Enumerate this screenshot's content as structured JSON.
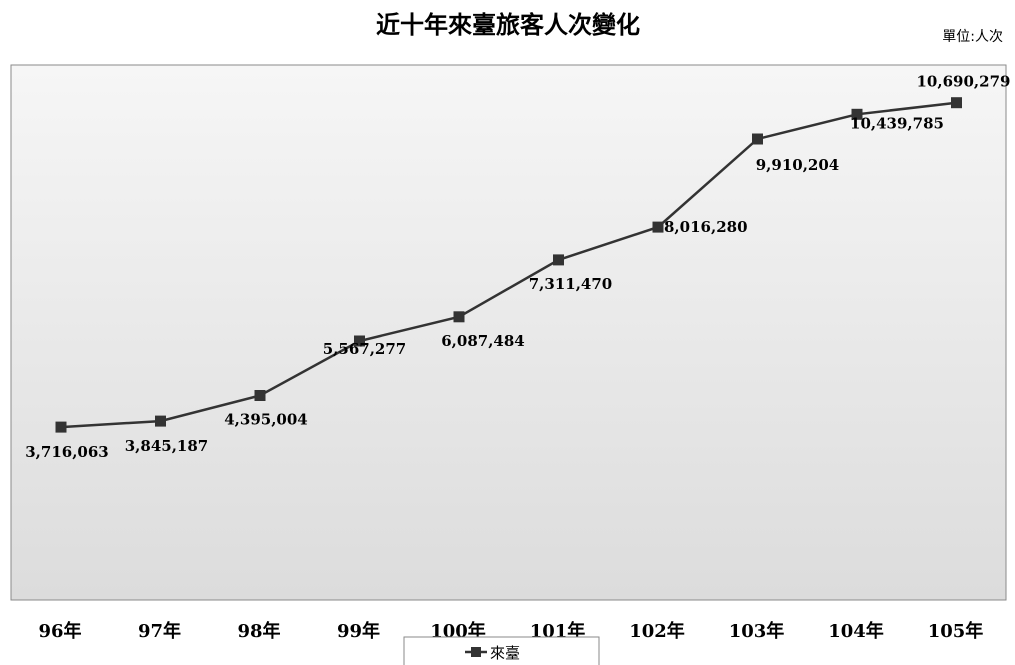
{
  "chart_data": {
    "type": "line",
    "title": "近十年來臺旅客人次變化",
    "unit_label": "單位:人次",
    "categories": [
      "96年",
      "97年",
      "98年",
      "99年",
      "100年",
      "101年",
      "102年",
      "103年",
      "104年",
      "105年"
    ],
    "series": [
      {
        "name": "來臺",
        "values": [
          3716063,
          3845187,
          4395004,
          5567277,
          6087484,
          7311470,
          8016280,
          9910204,
          10439785,
          10690279
        ],
        "labels": [
          "3,716,063",
          "3,845,187",
          "4,395,004",
          "5,567,277",
          "6,087,484",
          "7,311,470",
          "8,016,280",
          "9,910,204",
          "10,439,785",
          "10,690,279"
        ],
        "color": "#333333"
      }
    ],
    "ylim": [
      0,
      11500000
    ],
    "grid": false,
    "legend": "bottom"
  }
}
